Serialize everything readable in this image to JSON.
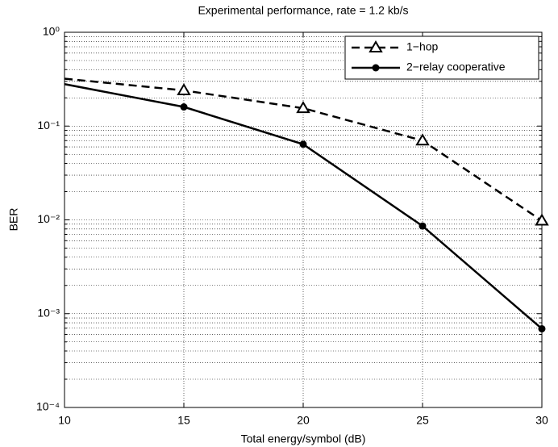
{
  "chart_data": {
    "type": "line",
    "title": "Experimental performance, rate = 1.2 kb/s",
    "x_label": "Total energy/symbol (dB)",
    "y_label": "BER",
    "x": [
      10,
      15,
      20,
      25,
      30
    ],
    "series": [
      {
        "name": "1−hop",
        "color": "#000000",
        "line_style": "dashed",
        "marker": "triangle",
        "values": [
          0.32,
          0.24,
          0.155,
          0.07,
          0.0098
        ]
      },
      {
        "name": "2−relay cooperative",
        "color": "#000000",
        "line_style": "solid",
        "marker": "circle",
        "values": [
          0.28,
          0.16,
          0.064,
          0.0086,
          0.00069
        ]
      }
    ],
    "xlim": [
      10,
      30
    ],
    "xticks": [
      10,
      15,
      20,
      25,
      30
    ],
    "ylim": [
      0.0001,
      1
    ],
    "yticks": [
      {
        "value": 0.0001,
        "label": "10⁻⁴"
      },
      {
        "value": 0.001,
        "label": "10⁻³"
      },
      {
        "value": 0.01,
        "label": "10⁻²"
      },
      {
        "value": 0.1,
        "label": "10⁻¹"
      },
      {
        "value": 1,
        "label": "10⁰"
      }
    ],
    "y_scale": "log",
    "grid": true,
    "legend": "upper right"
  }
}
